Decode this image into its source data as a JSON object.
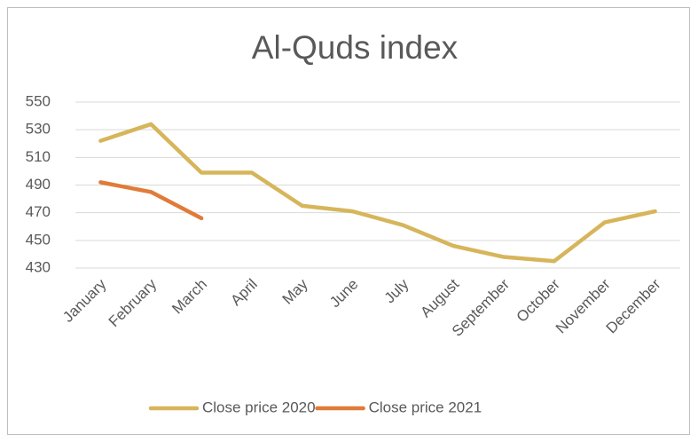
{
  "chart_data": {
    "type": "line",
    "title": "Al-Quds  index",
    "categories": [
      "January",
      "February",
      "March",
      "April",
      "May",
      "June",
      "July",
      "August",
      "September",
      "October",
      "November",
      "December"
    ],
    "series": [
      {
        "name": "Close price 2020",
        "color": "#d6b55b",
        "values": [
          522,
          534,
          499,
          499,
          475,
          471,
          461,
          446,
          438,
          435,
          463,
          471
        ]
      },
      {
        "name": "Close price 2021",
        "color": "#e07b39",
        "values": [
          492,
          485,
          466,
          null,
          null,
          null,
          null,
          null,
          null,
          null,
          null,
          null
        ]
      }
    ],
    "ylim": [
      430,
      550
    ],
    "yticks": [
      430,
      450,
      470,
      490,
      510,
      530,
      550
    ],
    "grid": true,
    "legend": "bottom"
  }
}
